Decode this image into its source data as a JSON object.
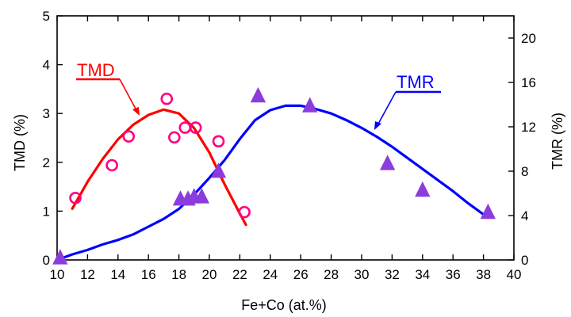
{
  "chart_data": {
    "type": "scatter",
    "xlabel": "Fe+Co (at.%)",
    "ylabel": "TMD (%)",
    "y2label": "TMR (%)",
    "xlim": [
      10,
      40
    ],
    "ylim": [
      0,
      5
    ],
    "y2lim": [
      0,
      22
    ],
    "xticks": [
      "10",
      "12",
      "14",
      "16",
      "18",
      "20",
      "22",
      "24",
      "26",
      "28",
      "30",
      "32",
      "34",
      "36",
      "38",
      "40"
    ],
    "yticks": [
      "0",
      "1",
      "2",
      "3",
      "4",
      "5"
    ],
    "y2ticks": [
      "0",
      "4",
      "8",
      "12",
      "16",
      "20"
    ],
    "grid": false,
    "annotations": [
      {
        "text": "TMD",
        "color": "#ff0000",
        "target_series": "TMD"
      },
      {
        "text": "TMR",
        "color": "#0000ff",
        "target_series": "TMR"
      }
    ],
    "series": [
      {
        "name": "TMD",
        "axis": "left",
        "marker": "circle",
        "color": "#ff0080",
        "points": [
          {
            "x": 11.2,
            "y": 1.27
          },
          {
            "x": 13.6,
            "y": 1.94
          },
          {
            "x": 14.7,
            "y": 2.53
          },
          {
            "x": 17.2,
            "y": 3.3
          },
          {
            "x": 17.7,
            "y": 2.51
          },
          {
            "x": 18.4,
            "y": 2.71
          },
          {
            "x": 19.1,
            "y": 2.71
          },
          {
            "x": 20.6,
            "y": 2.43
          },
          {
            "x": 22.3,
            "y": 0.98
          }
        ]
      },
      {
        "name": "TMD fit",
        "axis": "left",
        "line": true,
        "color": "#ff0000",
        "points": [
          {
            "x": 11.0,
            "y": 1.05
          },
          {
            "x": 12.0,
            "y": 1.6
          },
          {
            "x": 13.0,
            "y": 2.07
          },
          {
            "x": 14.0,
            "y": 2.47
          },
          {
            "x": 15.0,
            "y": 2.77
          },
          {
            "x": 16.0,
            "y": 2.97
          },
          {
            "x": 17.0,
            "y": 3.08
          },
          {
            "x": 18.0,
            "y": 3.0
          },
          {
            "x": 19.0,
            "y": 2.7
          },
          {
            "x": 20.0,
            "y": 2.2
          },
          {
            "x": 21.0,
            "y": 1.55
          },
          {
            "x": 22.0,
            "y": 0.95
          },
          {
            "x": 22.4,
            "y": 0.72
          }
        ]
      },
      {
        "name": "TMR",
        "axis": "right",
        "marker": "triangle",
        "color": "#8c3cdc",
        "points": [
          {
            "x": 10.2,
            "y": 0.2
          },
          {
            "x": 18.1,
            "y": 5.5
          },
          {
            "x": 18.6,
            "y": 5.5
          },
          {
            "x": 19.0,
            "y": 5.7
          },
          {
            "x": 19.5,
            "y": 5.7
          },
          {
            "x": 20.6,
            "y": 8.0
          },
          {
            "x": 23.2,
            "y": 14.8
          },
          {
            "x": 26.6,
            "y": 13.9
          },
          {
            "x": 31.7,
            "y": 8.7
          },
          {
            "x": 34.0,
            "y": 6.3
          },
          {
            "x": 38.3,
            "y": 4.3
          }
        ]
      },
      {
        "name": "TMR fit",
        "axis": "right",
        "line": true,
        "color": "#0000ff",
        "points": [
          {
            "x": 10.0,
            "y": 0.0
          },
          {
            "x": 11.0,
            "y": 0.5
          },
          {
            "x": 12.0,
            "y": 0.9
          },
          {
            "x": 13.0,
            "y": 1.4
          },
          {
            "x": 14.0,
            "y": 1.8
          },
          {
            "x": 15.0,
            "y": 2.3
          },
          {
            "x": 16.0,
            "y": 3.0
          },
          {
            "x": 17.0,
            "y": 3.7
          },
          {
            "x": 18.0,
            "y": 4.6
          },
          {
            "x": 19.0,
            "y": 5.9
          },
          {
            "x": 20.0,
            "y": 7.4
          },
          {
            "x": 21.0,
            "y": 9.0
          },
          {
            "x": 22.0,
            "y": 10.9
          },
          {
            "x": 23.0,
            "y": 12.6
          },
          {
            "x": 24.0,
            "y": 13.5
          },
          {
            "x": 25.0,
            "y": 13.9
          },
          {
            "x": 26.0,
            "y": 13.9
          },
          {
            "x": 27.0,
            "y": 13.6
          },
          {
            "x": 28.0,
            "y": 13.2
          },
          {
            "x": 29.0,
            "y": 12.6
          },
          {
            "x": 30.0,
            "y": 11.9
          },
          {
            "x": 31.0,
            "y": 11.1
          },
          {
            "x": 32.0,
            "y": 10.2
          },
          {
            "x": 33.0,
            "y": 9.2
          },
          {
            "x": 34.0,
            "y": 8.2
          },
          {
            "x": 35.0,
            "y": 7.2
          },
          {
            "x": 36.0,
            "y": 6.2
          },
          {
            "x": 37.0,
            "y": 5.1
          },
          {
            "x": 38.0,
            "y": 4.1
          }
        ]
      }
    ]
  }
}
